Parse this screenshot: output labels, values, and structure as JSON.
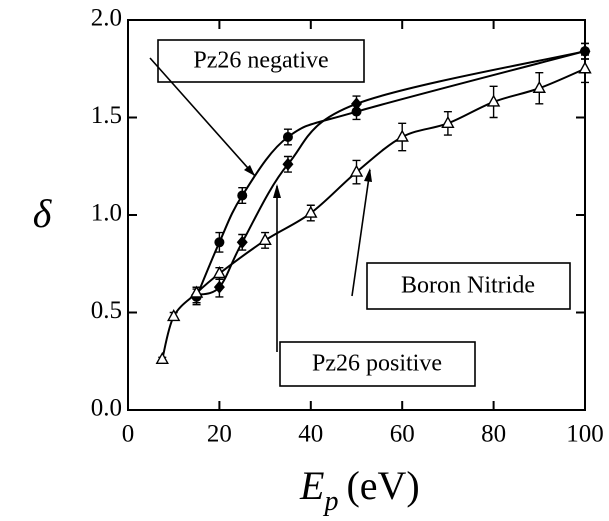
{
  "chart_data": {
    "type": "scatter",
    "x_label": {
      "symbol": "E",
      "subscript": "p",
      "unit": "(eV)"
    },
    "y_label": "δ",
    "xlim": [
      0,
      100
    ],
    "ylim": [
      0,
      2
    ],
    "xticks": [
      0,
      20,
      40,
      60,
      80,
      100
    ],
    "yticks": [
      {
        "value": 0,
        "label": "0.0"
      },
      0.5,
      {
        "value": 1,
        "label": "1.0"
      },
      1.5,
      {
        "value": 2,
        "label": "2.0"
      }
    ],
    "series": [
      {
        "name": "Pz26 negative",
        "color": "#000000",
        "marker": "circle",
        "x": [
          15,
          20,
          25,
          35,
          50,
          100
        ],
        "values": [
          0.58,
          0.86,
          1.1,
          1.4,
          1.53,
          1.84
        ],
        "errors": [
          0.04,
          0.05,
          0.04,
          0.04,
          0.04,
          0.04
        ]
      },
      {
        "name": "Pz26 positive",
        "color": "#000000",
        "marker": "diamond",
        "x": [
          15,
          20,
          25,
          35,
          50,
          100
        ],
        "values": [
          0.59,
          0.63,
          0.86,
          1.26,
          1.57,
          1.84
        ],
        "errors": [
          0.04,
          0.05,
          0.04,
          0.04,
          0.04,
          0.04
        ]
      },
      {
        "name": "Boron Nitride",
        "color": "#000000",
        "marker": "triangle-open",
        "x": [
          7.5,
          10,
          15,
          20,
          30,
          40,
          50,
          60,
          70,
          80,
          90,
          100
        ],
        "values": [
          0.26,
          0.48,
          0.6,
          0.7,
          0.87,
          1.01,
          1.22,
          1.4,
          1.47,
          1.58,
          1.65,
          1.75
        ],
        "errors": [
          0.01,
          0.02,
          0.03,
          0.03,
          0.04,
          0.04,
          0.06,
          0.07,
          0.06,
          0.08,
          0.08,
          0.07
        ]
      }
    ]
  }
}
